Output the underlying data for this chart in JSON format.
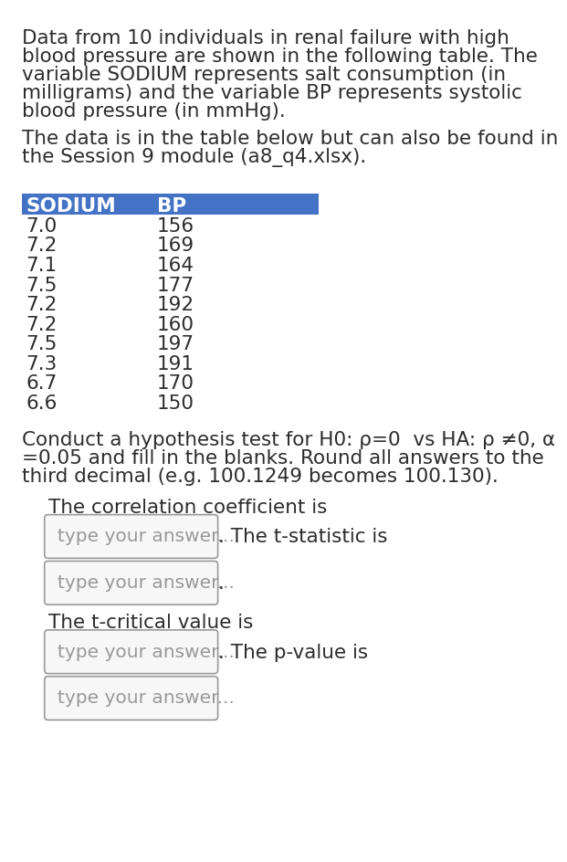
{
  "bg_color": "#ffffff",
  "text_color": "#2d2d2d",
  "header_bg": "#4472c4",
  "header_text": "#ffffff",
  "para1_lines": [
    "Data from 10 individuals in renal failure with high",
    "blood pressure are shown in the following table. The",
    "variable SODIUM represents salt consumption (in",
    "milligrams) and the variable BP represents systolic",
    "blood pressure (in mmHg)."
  ],
  "para2_lines": [
    "The data is in the table below but can also be found in",
    "the Session 9 module (a8_q4.xlsx)."
  ],
  "sodium": [
    7.0,
    7.2,
    7.1,
    7.5,
    7.2,
    7.2,
    7.5,
    7.3,
    6.7,
    6.6
  ],
  "bp": [
    156,
    169,
    164,
    177,
    192,
    160,
    197,
    191,
    170,
    150
  ],
  "hyp_lines": [
    "Conduct a hypothesis test for H0: ρ=0  vs HA: ρ ≠0, α",
    "=0.05 and fill in the blanks. Round all answers to the",
    "third decimal (e.g. 100.1249 becomes 100.130)."
  ],
  "label_corr": "The correlation coefficient is",
  "label_tstat": "The t-statistic is",
  "label_tcrit": "The t-critical value is",
  "label_pval": "The p-value is",
  "placeholder": "type your answer...",
  "table_header_col1": "SODIUM",
  "table_header_col2": "BP",
  "font_size_body": 15.5,
  "font_size_placeholder": 14.5,
  "font_size_label": 15.5
}
